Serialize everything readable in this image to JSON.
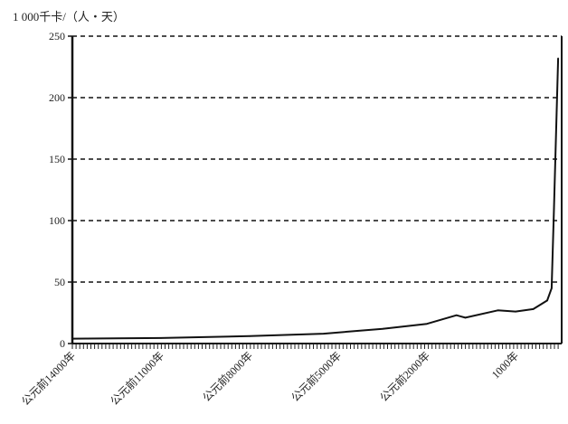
{
  "chart_data": {
    "type": "line",
    "title": "",
    "ylabel": "1 000千卡/（人・天）",
    "xlabel": "",
    "ylim": [
      0,
      250
    ],
    "xlim": [
      -14000,
      2560
    ],
    "yticks": [
      0,
      50,
      100,
      150,
      200,
      250
    ],
    "xtick_labels": [
      {
        "year": -14000,
        "label": "公元前14000年"
      },
      {
        "year": -11000,
        "label": "公元前11000年"
      },
      {
        "year": -8000,
        "label": "公元前8000年"
      },
      {
        "year": -5000,
        "label": "公元前5000年"
      },
      {
        "year": -2000,
        "label": "公元前2000年"
      },
      {
        "year": 1000,
        "label": "1000年"
      }
    ],
    "grid": "horizontal dashed",
    "color": "#111111",
    "series": [
      {
        "x": [
          -14000,
          -11000,
          -8000,
          -5500,
          -3500,
          -2000,
          -1000,
          -700,
          400,
          1000,
          1600,
          2070,
          2220,
          2300,
          2440
        ],
        "y": [
          4,
          4.5,
          6,
          8,
          12,
          16,
          23,
          21,
          27,
          26,
          28,
          35,
          45,
          110,
          232
        ]
      }
    ]
  }
}
